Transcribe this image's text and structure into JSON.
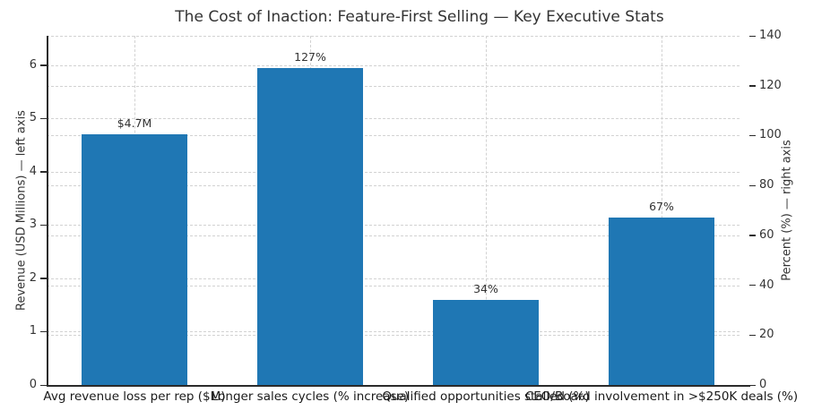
{
  "chart_data": {
    "type": "bar",
    "title": "The Cost of Inaction: Feature-First Selling — Key Executive Stats",
    "bar_color": "#1f77b4",
    "grid": true,
    "legend": "none",
    "categories": [
      "Avg revenue loss per rep ($M)",
      "Longer sales cycles (% increase)",
      "Qualified opportunities stalled (%)",
      "CEO/Board involvement in >$250K deals (%)"
    ],
    "bars": [
      {
        "category": "Avg revenue loss per rep ($M)",
        "value": 4.7,
        "axis": "left",
        "label": "$4.7M"
      },
      {
        "category": "Longer sales cycles (% increase)",
        "value": 127,
        "axis": "right",
        "label": "127%"
      },
      {
        "category": "Qualified opportunities stalled (%)",
        "value": 34,
        "axis": "right",
        "label": "34%"
      },
      {
        "category": "CEO/Board involvement in >$250K deals (%)",
        "value": 67,
        "axis": "right",
        "label": "67%"
      }
    ],
    "left_axis": {
      "label": "Revenue (USD Millions) — left axis",
      "ticks": [
        0,
        1,
        2,
        3,
        4,
        5,
        6
      ],
      "min": 0,
      "max": 6.55
    },
    "right_axis": {
      "label": "Percent (%) — right axis",
      "ticks": [
        0,
        20,
        40,
        60,
        80,
        100,
        120,
        140
      ],
      "min": 0,
      "max": 140
    }
  }
}
